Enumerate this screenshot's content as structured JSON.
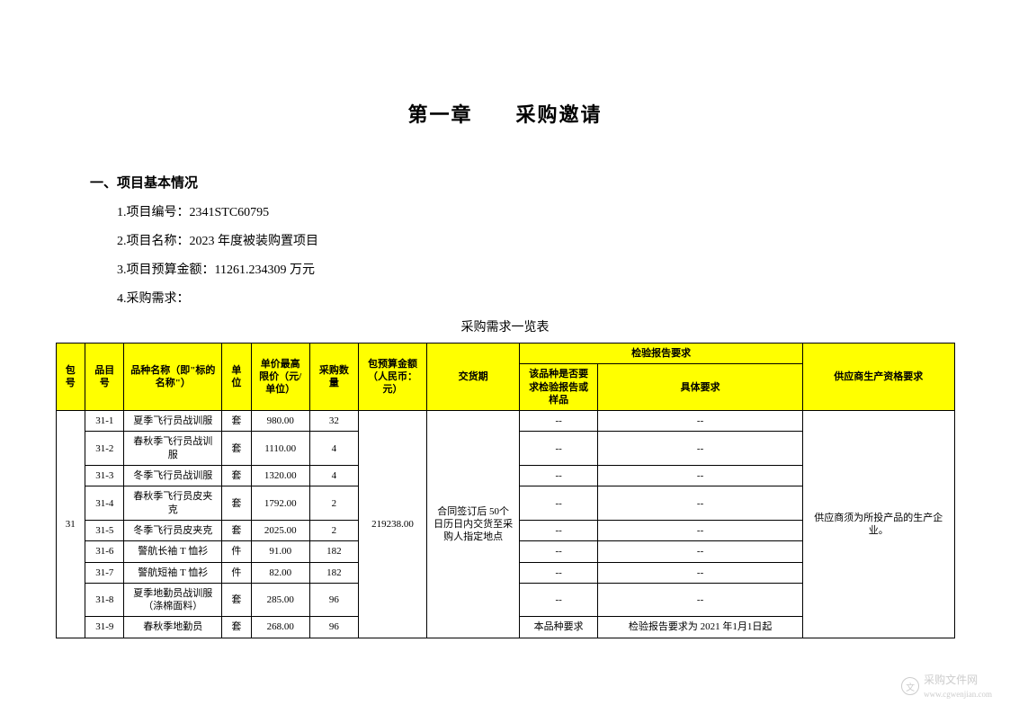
{
  "chapter_title": "第一章　　采购邀请",
  "section1": {
    "heading": "一、项目基本情况",
    "items": [
      "1.项目编号：2341STC60795",
      "2.项目名称：2023 年度被装购置项目",
      "3.项目预算金额：11261.234309 万元",
      "4.采购需求："
    ]
  },
  "table_title": "采购需求一览表",
  "table": {
    "headers": {
      "pkg": "包号",
      "item": "品目号",
      "name": "品种名称（即\"标的名称\"）",
      "unit": "单位",
      "price": "单价最高限价（元/单位）",
      "qty": "采购数量",
      "budget": "包预算金额（人民币：元）",
      "delivery": "交货期",
      "inspection_main": "检验报告要求",
      "inspection_sub1": "该品种是否要求检验报告或样品",
      "inspection_sub2": "具体要求",
      "supplier": "供应商生产资格要求"
    },
    "package_no": "31",
    "budget_total": "219238.00",
    "delivery_text": "合同签订后 50个日历日内交货至采购人指定地点",
    "supplier_text": "供应商须为所投产品的生产企业。",
    "rows": [
      {
        "item": "31-1",
        "name": "夏季飞行员战训服",
        "unit": "套",
        "price": "980.00",
        "qty": "32",
        "req1": "--",
        "req2": "--"
      },
      {
        "item": "31-2",
        "name": "春秋季飞行员战训服",
        "unit": "套",
        "price": "1110.00",
        "qty": "4",
        "req1": "--",
        "req2": "--"
      },
      {
        "item": "31-3",
        "name": "冬季飞行员战训服",
        "unit": "套",
        "price": "1320.00",
        "qty": "4",
        "req1": "--",
        "req2": "--"
      },
      {
        "item": "31-4",
        "name": "春秋季飞行员皮夹克",
        "unit": "套",
        "price": "1792.00",
        "qty": "2",
        "req1": "--",
        "req2": "--"
      },
      {
        "item": "31-5",
        "name": "冬季飞行员皮夹克",
        "unit": "套",
        "price": "2025.00",
        "qty": "2",
        "req1": "--",
        "req2": "--"
      },
      {
        "item": "31-6",
        "name": "警航长袖 T 恤衫",
        "unit": "件",
        "price": "91.00",
        "qty": "182",
        "req1": "--",
        "req2": "--"
      },
      {
        "item": "31-7",
        "name": "警航短袖 T 恤衫",
        "unit": "件",
        "price": "82.00",
        "qty": "182",
        "req1": "--",
        "req2": "--"
      },
      {
        "item": "31-8",
        "name": "夏季地勤员战训服（涤棉面料）",
        "unit": "套",
        "price": "285.00",
        "qty": "96",
        "req1": "--",
        "req2": "--"
      },
      {
        "item": "31-9",
        "name": "春秋季地勤员",
        "unit": "套",
        "price": "268.00",
        "qty": "96",
        "req1": "本品种要求",
        "req2": "检验报告要求为 2021 年1月1日起"
      }
    ],
    "header_bg": "#ffff00",
    "border_color": "#000000"
  },
  "watermark": {
    "text": "采购文件网",
    "url": "www.cgwenjian.com"
  }
}
